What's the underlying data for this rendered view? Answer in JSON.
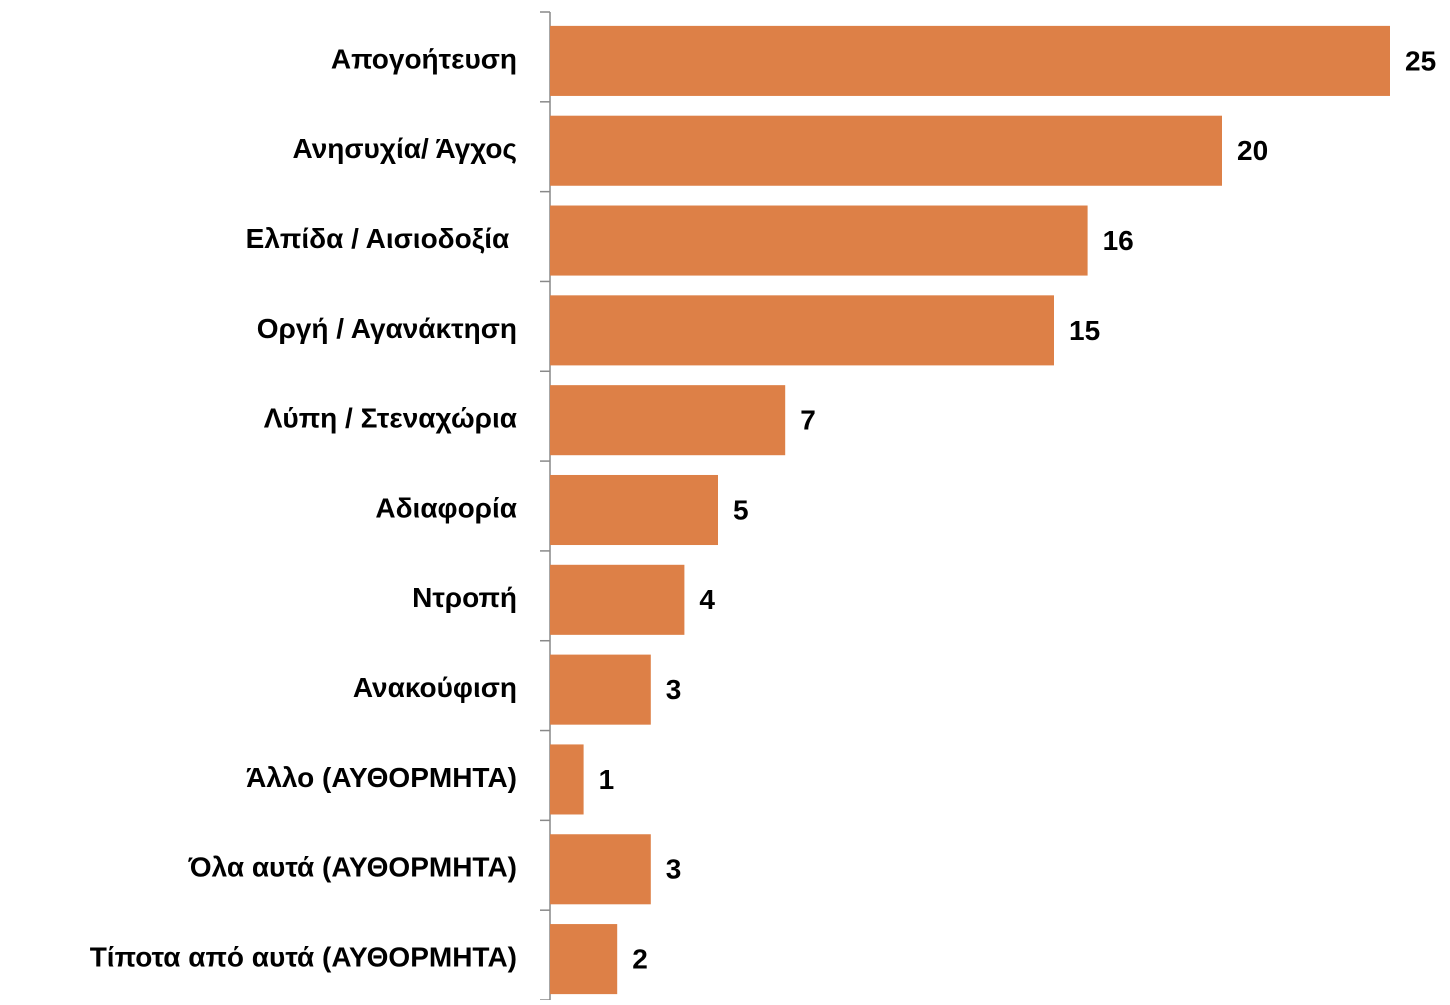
{
  "chart_data": {
    "type": "hbar",
    "categories": [
      "Απογοήτευση",
      "Ανησυχία/ Άγχος",
      "Ελπίδα / Αισιοδοξία ",
      "Οργή / Αγανάκτηση",
      "Λύπη / Στεναχώρια",
      "Αδιαφορία",
      "Ντροπή",
      "Ανακούφιση",
      "Άλλο (ΑΥΘΟΡΜΗΤΑ)",
      "Όλα αυτά (ΑΥΘΟΡΜΗΤΑ)",
      "Τίποτα από αυτά (ΑΥΘΟΡΜΗΤΑ)"
    ],
    "values": [
      25,
      20,
      16,
      15,
      7,
      5,
      4,
      3,
      1,
      3,
      2
    ],
    "color": "#dd8047",
    "xlim": [
      0,
      25
    ]
  }
}
